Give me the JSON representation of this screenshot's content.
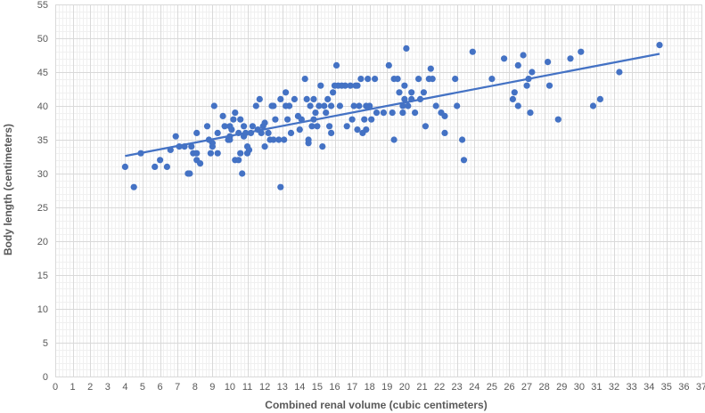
{
  "chart_data": {
    "type": "scatter",
    "title": "",
    "xlabel": "Combined renal volume (cubic centimeters)",
    "ylabel": "Body length (centimeters)",
    "xlim": [
      0,
      37
    ],
    "ylim": [
      0,
      55
    ],
    "x_major_step": 1,
    "y_major_step": 5,
    "x_minor_step": 0.2,
    "y_minor_step": 1,
    "grid": true,
    "legend": "none",
    "colors": {
      "points": "#4472C4",
      "trendline": "#4472C4",
      "major_grid": "#D9D9D9",
      "minor_grid": "#F0F0F0",
      "text": "#595959"
    },
    "trendline": {
      "type": "linear",
      "x": [
        4.0,
        34.6
      ],
      "y": [
        32.6,
        47.7
      ]
    },
    "points": [
      [
        4.0,
        31
      ],
      [
        4.5,
        28
      ],
      [
        4.9,
        33
      ],
      [
        5.7,
        31
      ],
      [
        6.0,
        32
      ],
      [
        6.4,
        31
      ],
      [
        6.6,
        33.5
      ],
      [
        6.9,
        35.5
      ],
      [
        7.1,
        34
      ],
      [
        7.4,
        34
      ],
      [
        7.6,
        30
      ],
      [
        7.7,
        30
      ],
      [
        7.8,
        34
      ],
      [
        7.9,
        33
      ],
      [
        8.1,
        36
      ],
      [
        8.1,
        33
      ],
      [
        8.1,
        32
      ],
      [
        8.3,
        31.5
      ],
      [
        8.7,
        37
      ],
      [
        8.8,
        35
      ],
      [
        8.9,
        33
      ],
      [
        9.0,
        34
      ],
      [
        9.0,
        34.5
      ],
      [
        9.1,
        40
      ],
      [
        9.3,
        36
      ],
      [
        9.3,
        33
      ],
      [
        9.6,
        38.5
      ],
      [
        9.7,
        37
      ],
      [
        9.9,
        35
      ],
      [
        10.0,
        37
      ],
      [
        10.0,
        35.5
      ],
      [
        10.0,
        35
      ],
      [
        10.1,
        36.5
      ],
      [
        10.2,
        38
      ],
      [
        10.3,
        32
      ],
      [
        10.3,
        39
      ],
      [
        10.5,
        32
      ],
      [
        10.5,
        36
      ],
      [
        10.6,
        38
      ],
      [
        10.6,
        33
      ],
      [
        10.7,
        30
      ],
      [
        10.8,
        37
      ],
      [
        10.8,
        35.5
      ],
      [
        10.9,
        36
      ],
      [
        11.0,
        33
      ],
      [
        11.0,
        34
      ],
      [
        11.1,
        33.5
      ],
      [
        11.2,
        36
      ],
      [
        11.3,
        37
      ],
      [
        11.5,
        40
      ],
      [
        11.6,
        36.5
      ],
      [
        11.7,
        41
      ],
      [
        11.8,
        36
      ],
      [
        11.9,
        37
      ],
      [
        12.0,
        37.5
      ],
      [
        12.0,
        34
      ],
      [
        12.2,
        36
      ],
      [
        12.3,
        35
      ],
      [
        12.4,
        40
      ],
      [
        12.5,
        35
      ],
      [
        12.5,
        40
      ],
      [
        12.6,
        38
      ],
      [
        12.8,
        35
      ],
      [
        12.9,
        41
      ],
      [
        12.9,
        28
      ],
      [
        13.1,
        35
      ],
      [
        13.2,
        40
      ],
      [
        13.2,
        42
      ],
      [
        13.3,
        38
      ],
      [
        13.4,
        40
      ],
      [
        13.5,
        36
      ],
      [
        13.7,
        41
      ],
      [
        13.9,
        38.5
      ],
      [
        14.0,
        36.5
      ],
      [
        14.1,
        38
      ],
      [
        14.3,
        44
      ],
      [
        14.4,
        41
      ],
      [
        14.5,
        35
      ],
      [
        14.5,
        34.5
      ],
      [
        14.6,
        40
      ],
      [
        14.7,
        37
      ],
      [
        14.8,
        38
      ],
      [
        14.8,
        41
      ],
      [
        14.9,
        39
      ],
      [
        15.0,
        37
      ],
      [
        15.1,
        40
      ],
      [
        15.2,
        43
      ],
      [
        15.3,
        34
      ],
      [
        15.4,
        40
      ],
      [
        15.5,
        39
      ],
      [
        15.6,
        41
      ],
      [
        15.7,
        37
      ],
      [
        15.8,
        36
      ],
      [
        15.8,
        40
      ],
      [
        15.9,
        42
      ],
      [
        16.0,
        43
      ],
      [
        16.1,
        46
      ],
      [
        16.2,
        43
      ],
      [
        16.3,
        40
      ],
      [
        16.4,
        43
      ],
      [
        16.6,
        43
      ],
      [
        16.7,
        37
      ],
      [
        16.9,
        43
      ],
      [
        17.0,
        38
      ],
      [
        17.1,
        40
      ],
      [
        17.2,
        43
      ],
      [
        17.3,
        36.5
      ],
      [
        17.3,
        43
      ],
      [
        17.4,
        40
      ],
      [
        17.5,
        44
      ],
      [
        17.6,
        36
      ],
      [
        17.7,
        38
      ],
      [
        17.8,
        36.5
      ],
      [
        17.8,
        40
      ],
      [
        17.9,
        44
      ],
      [
        18.0,
        40
      ],
      [
        18.1,
        38
      ],
      [
        18.3,
        44
      ],
      [
        18.4,
        39
      ],
      [
        18.8,
        39
      ],
      [
        19.1,
        46
      ],
      [
        19.3,
        39
      ],
      [
        19.4,
        44
      ],
      [
        19.4,
        35
      ],
      [
        19.6,
        44
      ],
      [
        19.7,
        42
      ],
      [
        19.9,
        39
      ],
      [
        19.9,
        40
      ],
      [
        20.0,
        43
      ],
      [
        20.0,
        41
      ],
      [
        20.1,
        48.5
      ],
      [
        20.2,
        40
      ],
      [
        20.4,
        42
      ],
      [
        20.4,
        41
      ],
      [
        20.6,
        39
      ],
      [
        20.8,
        44
      ],
      [
        20.9,
        41
      ],
      [
        21.1,
        42
      ],
      [
        21.2,
        37
      ],
      [
        21.4,
        44
      ],
      [
        21.5,
        45.5
      ],
      [
        21.6,
        44
      ],
      [
        21.8,
        40
      ],
      [
        22.1,
        39
      ],
      [
        22.3,
        36
      ],
      [
        22.3,
        38.5
      ],
      [
        22.9,
        44
      ],
      [
        23.0,
        40
      ],
      [
        23.3,
        35
      ],
      [
        23.4,
        32
      ],
      [
        23.9,
        48
      ],
      [
        25.0,
        44
      ],
      [
        25.7,
        47
      ],
      [
        26.2,
        41
      ],
      [
        26.3,
        42
      ],
      [
        26.5,
        46
      ],
      [
        26.5,
        40
      ],
      [
        26.8,
        47.5
      ],
      [
        27.0,
        43
      ],
      [
        27.1,
        44
      ],
      [
        27.2,
        39
      ],
      [
        27.3,
        45
      ],
      [
        28.2,
        46.5
      ],
      [
        28.3,
        43
      ],
      [
        28.8,
        38
      ],
      [
        29.5,
        47
      ],
      [
        30.1,
        48
      ],
      [
        30.8,
        40
      ],
      [
        31.2,
        41
      ],
      [
        32.3,
        45
      ],
      [
        34.6,
        49
      ]
    ]
  }
}
